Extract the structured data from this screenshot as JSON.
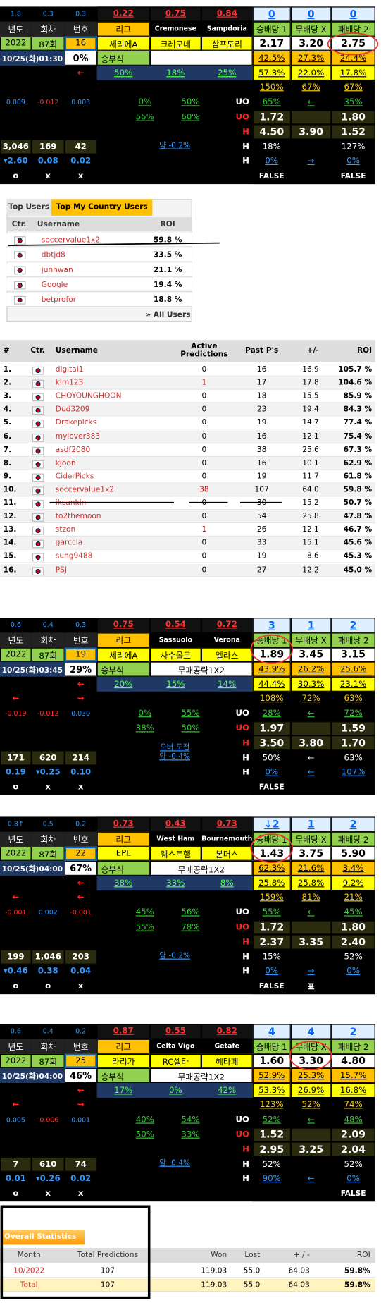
{
  "blocks": [
    {
      "top": [
        "1.8",
        "0.3",
        "0.3",
        "0.22",
        "0.75",
        "0.84",
        "0",
        "0",
        "0"
      ],
      "header": [
        "년도",
        "회차",
        "번호",
        "리그",
        "Cremonese",
        "Sampdoria",
        "승배당 1",
        "무배당 X",
        "패배당 2"
      ],
      "teams": [
        "2022",
        "87회",
        "16",
        "세리에A",
        "크레모네",
        "삼프도리",
        "2.17",
        "3.20",
        "2.75"
      ],
      "date": "10/25(화)01:30",
      "win_rate": "0%",
      "bet_type": "승부식",
      "bet_note": null,
      "rates": [
        "42.5%",
        "27.3%",
        "24.4%"
      ],
      "arrow": "←",
      "league_pcts": [
        "50%",
        "18%",
        "25%"
      ],
      "rates2": [
        "57.3%",
        "22.0%",
        "17.8%"
      ],
      "side_arrows": [
        null,
        null
      ],
      "rates3": [
        "150%",
        "67%",
        "67%"
      ],
      "diffs": [
        "0.009",
        "-0.012",
        "0.003"
      ],
      "uo_pcts_1": [
        "0%",
        "50%"
      ],
      "uo_1": [
        "65%",
        "←",
        "35%"
      ],
      "uo_pcts_2": [
        "55%",
        "60%"
      ],
      "uo_2": [
        "1.72",
        null,
        "1.80"
      ],
      "h_1": [
        "4.50",
        "3.90",
        "1.52"
      ],
      "volumes": [
        "3,046",
        "169",
        "42"
      ],
      "note": [
        "양 -0.2%"
      ],
      "h_2": [
        "18%",
        null,
        "127%"
      ],
      "changes": [
        "▾2.60",
        "0.08",
        "0.02"
      ],
      "h_3": [
        "0%",
        "→",
        "0%"
      ],
      "row_labels": [
        "UO",
        "UO",
        "H",
        "H",
        "H"
      ],
      "flags": [
        "o",
        "x",
        "x"
      ],
      "results": [
        "FALSE",
        null,
        "FALSE"
      ]
    },
    {
      "top": [
        "0.6",
        "0.4",
        "0.3",
        "0.75",
        "0.54",
        "0.72",
        "3",
        "1",
        "2"
      ],
      "header": [
        "년도",
        "회차",
        "번호",
        "리그",
        "Sassuolo",
        "Verona",
        "승배당 1",
        "무배당 X",
        "패배당 2"
      ],
      "teams": [
        "2022",
        "87회",
        "19",
        "세리에A",
        "사수올로",
        "엘라스",
        "1.89",
        "3.45",
        "3.15"
      ],
      "date": "10/25(화)03:45",
      "win_rate": "29%",
      "bet_type": "승부식",
      "bet_note": "무패공략1X2",
      "rates": [
        "43.9%",
        "26.2%",
        "25.6%"
      ],
      "arrow": "←",
      "league_pcts": [
        "20%",
        "15%",
        "14%"
      ],
      "rates2": [
        "44.4%",
        "30.3%",
        "23.1%"
      ],
      "side_arrows": [
        "←",
        "→"
      ],
      "rates3": [
        "108%",
        "72%",
        "63%"
      ],
      "diffs": [
        "-0.019",
        "-0.012",
        "0.030"
      ],
      "uo_pcts_1": [
        "0%",
        "55%"
      ],
      "uo_1": [
        "28%",
        "←",
        "72%"
      ],
      "uo_pcts_2": [
        "38%",
        "50%"
      ],
      "uo_2": [
        "1.97",
        null,
        "1.59"
      ],
      "h_1": [
        "3.50",
        "3.80",
        "1.70"
      ],
      "volumes": [
        "171",
        "620",
        "214"
      ],
      "note": [
        "오버 도전",
        "양 -0.4%"
      ],
      "h_2": [
        "50%",
        "←",
        "63%"
      ],
      "changes": [
        "0.19",
        "▾0.25",
        "0.10"
      ],
      "h_3": [
        "0%",
        "←",
        "107%"
      ],
      "row_labels": [
        "UO",
        "UO",
        "H",
        "H",
        "H"
      ],
      "flags": [
        "o",
        "x",
        "x"
      ],
      "results": [
        "FALSE",
        null,
        null
      ]
    },
    {
      "top": [
        "0.8↑",
        "0.5",
        "0.2",
        "0.73",
        "0.43",
        "0.73",
        "↓2",
        "1",
        "2"
      ],
      "header": [
        "년도",
        "회차",
        "번호",
        "리그",
        "West Ham",
        "Bournemouth",
        "승배당 1",
        "무배당 X",
        "패배당 2"
      ],
      "teams": [
        "2022",
        "87회",
        "22",
        "EPL",
        "웨스트햄",
        "본머스",
        "1.43",
        "3.75",
        "5.90"
      ],
      "date": "10/25(화)04:00",
      "win_rate": "67%",
      "bet_type": "승부식",
      "bet_note": "무패공략1X2",
      "rates": [
        "62.3%",
        "21.6%",
        "3.4%"
      ],
      "arrow": "←",
      "league_pcts": [
        "38%",
        "33%",
        "8%"
      ],
      "rates2": [
        "25.8%",
        "25.8%",
        "9.2%"
      ],
      "side_arrows": [
        "←",
        "←"
      ],
      "rates3": [
        "159%",
        "81%",
        "21%"
      ],
      "diffs": [
        "-0.001",
        "0.002",
        "-0.001"
      ],
      "uo_pcts_1": [
        "45%",
        "56%"
      ],
      "uo_1": [
        "55%",
        "←",
        "45%"
      ],
      "uo_pcts_2": [
        "55%",
        "78%"
      ],
      "uo_2": [
        "1.72",
        null,
        "1.80"
      ],
      "h_1": [
        "2.37",
        "3.35",
        "2.40"
      ],
      "volumes": [
        "199",
        "1,046",
        "203"
      ],
      "note": [
        "양 -0.2%"
      ],
      "h_2": [
        "15%",
        null,
        "52%"
      ],
      "changes": [
        "▾0.46",
        "0.38",
        "0.04"
      ],
      "h_3": [
        "0%",
        "→",
        "0%"
      ],
      "row_labels": [
        "UO",
        "UO",
        "H",
        "H",
        "H"
      ],
      "flags": [
        "o",
        "o",
        "x"
      ],
      "results": [
        "FALSE",
        "표",
        null
      ]
    },
    {
      "top": [
        "0.6",
        "0.4",
        "0.2",
        "0.87",
        "0.55",
        "0.82",
        "4",
        "4",
        "2"
      ],
      "header": [
        "년도",
        "회차",
        "번호",
        "리그",
        "Celta Vigo",
        "Getafe",
        "승배당 1",
        "무배당 X",
        "패배당 2"
      ],
      "teams": [
        "2022",
        "87회",
        "25",
        "라리가",
        "RC셀타",
        "헤타페",
        "1.60",
        "3.30",
        "4.80"
      ],
      "date": "10/25(화)04:00",
      "win_rate": "46%",
      "bet_type": "승부식",
      "bet_note": "무패공략1X2",
      "rates": [
        "52.9%",
        "25.3%",
        "15.7%"
      ],
      "arrow": "←",
      "league_pcts": [
        "17%",
        "0%",
        "42%"
      ],
      "rates2": [
        "53.3%",
        "26.9%",
        "16.8%"
      ],
      "side_arrows": [
        "←",
        "→"
      ],
      "rates3": [
        "123%",
        "52%",
        "74%"
      ],
      "diffs": [
        "0.005",
        "-0.006",
        "0.001"
      ],
      "uo_pcts_1": [
        "40%",
        "54%"
      ],
      "uo_1": [
        "52%",
        "←",
        "48%"
      ],
      "uo_pcts_2": [
        "50%",
        "33%"
      ],
      "uo_2": [
        "1.52",
        null,
        "2.09"
      ],
      "h_1": [
        "2.95",
        "3.25",
        "2.04"
      ],
      "volumes": [
        "7",
        "610",
        "74"
      ],
      "note": [
        "양 -0.4%"
      ],
      "h_2": [
        "52%",
        null,
        "52%"
      ],
      "changes": [
        "0.01",
        "▾0.26",
        "0.02"
      ],
      "h_3": [
        "90%",
        "←",
        "0%"
      ],
      "row_labels": [
        "UO",
        "UO",
        "H",
        "H",
        "H"
      ],
      "flags": [
        "o",
        "x",
        "x"
      ],
      "results": [
        null,
        null,
        "FALSE"
      ]
    }
  ],
  "top_users": {
    "tabs": [
      "Top Users",
      "Top My Country Users"
    ],
    "headers": [
      "Ctr.",
      "Username",
      "ROI"
    ],
    "rows": [
      [
        "soccervalue1x2",
        "59.8 %"
      ],
      [
        "dbtjd8",
        "33.5 %"
      ],
      [
        "junhwan",
        "21.1 %"
      ],
      [
        "Google",
        "19.4 %"
      ],
      [
        "betprofor",
        "18.8 %"
      ]
    ],
    "link": "» All Users"
  },
  "ranking": {
    "headers": [
      "#",
      "Ctr.",
      "Username",
      "Active Predictions",
      "Past P's",
      "+/-",
      "ROI"
    ],
    "rows": [
      [
        "1.",
        "digital1",
        "0",
        "16",
        "16.9",
        "105.7 %"
      ],
      [
        "2.",
        "kim123",
        "1",
        "17",
        "17.8",
        "104.6 %"
      ],
      [
        "3.",
        "CHOYOUNGHOON",
        "0",
        "18",
        "15.5",
        "85.9 %"
      ],
      [
        "4.",
        "Dud3209",
        "0",
        "23",
        "19.4",
        "84.3 %"
      ],
      [
        "5.",
        "Drakepicks",
        "0",
        "19",
        "14.7",
        "77.4 %"
      ],
      [
        "6.",
        "mylover383",
        "0",
        "16",
        "12.1",
        "75.4 %"
      ],
      [
        "7.",
        "asdf2080",
        "0",
        "38",
        "25.6",
        "67.3 %"
      ],
      [
        "8.",
        "kjoon",
        "0",
        "16",
        "10.1",
        "62.9 %"
      ],
      [
        "9.",
        "CiderPicks",
        "0",
        "19",
        "11.7",
        "61.8 %"
      ],
      [
        "10.",
        "soccervalue1x2",
        "38",
        "107",
        "64.0",
        "59.8 %"
      ],
      [
        "11.",
        "iksankin",
        "0",
        "30",
        "15.2",
        "50.7 %"
      ],
      [
        "12.",
        "to2themoon",
        "0",
        "54",
        "25.8",
        "47.8 %"
      ],
      [
        "13.",
        "stzon",
        "1",
        "26",
        "12.1",
        "46.7 %"
      ],
      [
        "14.",
        "garccia",
        "0",
        "33",
        "15.1",
        "45.6 %"
      ],
      [
        "15.",
        "sung9488",
        "0",
        "19",
        "8.6",
        "45.3 %"
      ],
      [
        "16.",
        "PSJ",
        "0",
        "27",
        "12.2",
        "45.0 %"
      ]
    ]
  },
  "overall": {
    "title": "Overall Statistics",
    "headers": [
      "Month",
      "Total Predictions",
      "Won",
      "Lost",
      "+ / -",
      "ROI"
    ],
    "rows": [
      [
        "10/2022",
        "107",
        "119.03",
        "55.0",
        "64.03",
        "59.8%"
      ],
      [
        "Total",
        "107",
        "119.03",
        "55.0",
        "64.03",
        "59.8%"
      ]
    ]
  }
}
